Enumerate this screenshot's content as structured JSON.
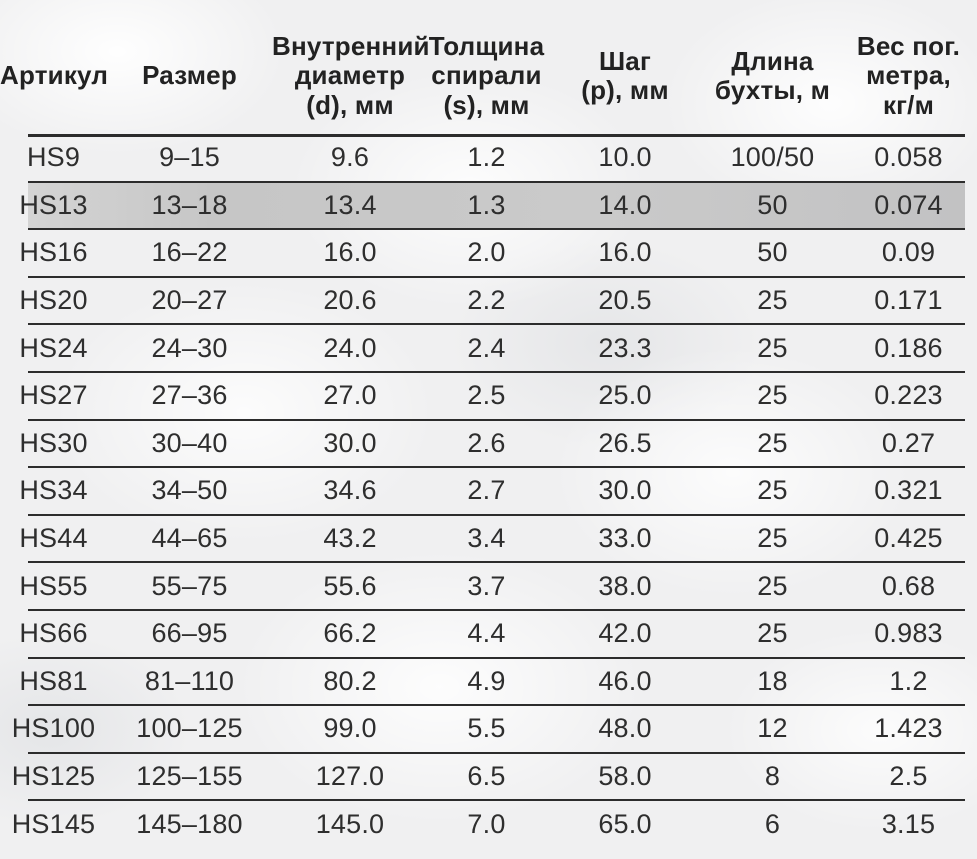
{
  "colors": {
    "divider": "#2c2c2c",
    "text": "#2e2e2e",
    "header-text": "#222222",
    "highlight": "#c8c8c8",
    "page-bg": "#f0f0f1"
  },
  "table": {
    "highlighted_article": "HS13",
    "columns": [
      {
        "id": "article",
        "label": "Артикул"
      },
      {
        "id": "size",
        "label": "Размер"
      },
      {
        "id": "inner_diameter",
        "label": "Внутренний\nдиаметр\n(d), мм"
      },
      {
        "id": "spiral_thickness",
        "label": "Толщина\nспирали\n(s), мм"
      },
      {
        "id": "pitch",
        "label": "Шаг\n(p), мм"
      },
      {
        "id": "coil_length",
        "label": "Длина\nбухты, м"
      },
      {
        "id": "weight",
        "label": "Вес пог.\nметра,\nкг/м"
      }
    ],
    "rows": [
      {
        "article": "HS9",
        "size": "9–15",
        "inner_diameter": "9.6",
        "spiral_thickness": "1.2",
        "pitch": "10.0",
        "coil_length": "100/50",
        "weight": "0.058"
      },
      {
        "article": "HS13",
        "size": "13–18",
        "inner_diameter": "13.4",
        "spiral_thickness": "1.3",
        "pitch": "14.0",
        "coil_length": "50",
        "weight": "0.074"
      },
      {
        "article": "HS16",
        "size": "16–22",
        "inner_diameter": "16.0",
        "spiral_thickness": "2.0",
        "pitch": "16.0",
        "coil_length": "50",
        "weight": "0.09"
      },
      {
        "article": "HS20",
        "size": "20–27",
        "inner_diameter": "20.6",
        "spiral_thickness": "2.2",
        "pitch": "20.5",
        "coil_length": "25",
        "weight": "0.171"
      },
      {
        "article": "HS24",
        "size": "24–30",
        "inner_diameter": "24.0",
        "spiral_thickness": "2.4",
        "pitch": "23.3",
        "coil_length": "25",
        "weight": "0.186"
      },
      {
        "article": "HS27",
        "size": "27–36",
        "inner_diameter": "27.0",
        "spiral_thickness": "2.5",
        "pitch": "25.0",
        "coil_length": "25",
        "weight": "0.223"
      },
      {
        "article": "HS30",
        "size": "30–40",
        "inner_diameter": "30.0",
        "spiral_thickness": "2.6",
        "pitch": "26.5",
        "coil_length": "25",
        "weight": "0.27"
      },
      {
        "article": "HS34",
        "size": "34–50",
        "inner_diameter": "34.6",
        "spiral_thickness": "2.7",
        "pitch": "30.0",
        "coil_length": "25",
        "weight": "0.321"
      },
      {
        "article": "HS44",
        "size": "44–65",
        "inner_diameter": "43.2",
        "spiral_thickness": "3.4",
        "pitch": "33.0",
        "coil_length": "25",
        "weight": "0.425"
      },
      {
        "article": "HS55",
        "size": "55–75",
        "inner_diameter": "55.6",
        "spiral_thickness": "3.7",
        "pitch": "38.0",
        "coil_length": "25",
        "weight": "0.68"
      },
      {
        "article": "HS66",
        "size": "66–95",
        "inner_diameter": "66.2",
        "spiral_thickness": "4.4",
        "pitch": "42.0",
        "coil_length": "25",
        "weight": "0.983"
      },
      {
        "article": "HS81",
        "size": "81–110",
        "inner_diameter": "80.2",
        "spiral_thickness": "4.9",
        "pitch": "46.0",
        "coil_length": "18",
        "weight": "1.2"
      },
      {
        "article": "HS100",
        "size": "100–125",
        "inner_diameter": "99.0",
        "spiral_thickness": "5.5",
        "pitch": "48.0",
        "coil_length": "12",
        "weight": "1.423"
      },
      {
        "article": "HS125",
        "size": "125–155",
        "inner_diameter": "127.0",
        "spiral_thickness": "6.5",
        "pitch": "58.0",
        "coil_length": "8",
        "weight": "2.5"
      },
      {
        "article": "HS145",
        "size": "145–180",
        "inner_diameter": "145.0",
        "spiral_thickness": "7.0",
        "pitch": "65.0",
        "coil_length": "6",
        "weight": "3.15"
      }
    ]
  }
}
